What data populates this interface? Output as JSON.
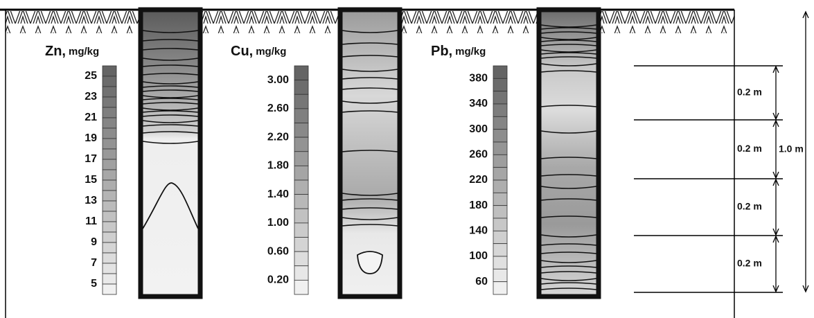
{
  "panels": [
    {
      "element": "Zn,",
      "unit": "mg/kg",
      "scale": [
        "25",
        "23",
        "21",
        "19",
        "17",
        "15",
        "13",
        "11",
        "9",
        "7",
        "5"
      ]
    },
    {
      "element": "Cu,",
      "unit": "mg/kg",
      "scale": [
        "3.00",
        "2.60",
        "2.20",
        "1.80",
        "1.40",
        "1.00",
        "0.60",
        "0.20"
      ]
    },
    {
      "element": "Pb,",
      "unit": "mg/kg",
      "scale": [
        "380",
        "340",
        "300",
        "260",
        "220",
        "180",
        "140",
        "100",
        "60"
      ]
    }
  ],
  "layers": [
    "0.2 m",
    "0.2 m",
    "0.2 m",
    "0.2 m"
  ],
  "total": "1.0 m"
}
